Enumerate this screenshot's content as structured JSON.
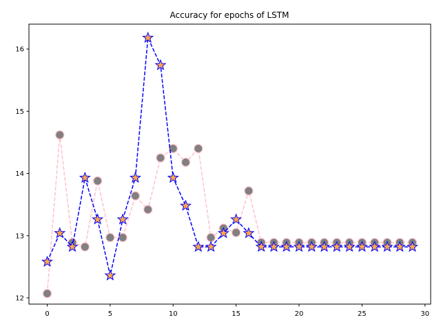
{
  "chart_data": {
    "type": "line",
    "title": "Accuracy for epochs of LSTM",
    "xlabel": "",
    "ylabel": "",
    "xlim": [
      -1.45,
      30.45
    ],
    "ylim": [
      11.9,
      16.4
    ],
    "xticks": [
      0,
      5,
      10,
      15,
      20,
      25,
      30
    ],
    "yticks": [
      12,
      13,
      14,
      15,
      16
    ],
    "grid": false,
    "x": [
      0,
      1,
      2,
      3,
      4,
      5,
      6,
      7,
      8,
      9,
      10,
      11,
      12,
      13,
      14,
      15,
      16,
      17,
      18,
      19,
      20,
      21,
      22,
      23,
      24,
      25,
      26,
      27,
      28,
      29
    ],
    "series": [
      {
        "line_color": "#ffc0cb",
        "marker": "circle",
        "marker_fill": "#808080",
        "marker_edge": "#ffc0cb",
        "values": [
          12.07,
          14.62,
          12.89,
          12.82,
          13.88,
          12.97,
          12.97,
          13.64,
          13.42,
          14.25,
          14.4,
          14.18,
          14.4,
          12.97,
          13.12,
          13.05,
          13.72,
          12.89,
          12.89,
          12.89,
          12.89,
          12.89,
          12.89,
          12.89,
          12.89,
          12.89,
          12.89,
          12.89,
          12.89,
          12.89
        ]
      },
      {
        "line_color": "#0000ff",
        "marker": "star",
        "marker_fill": "#ffa54f",
        "marker_edge": "#0000ff",
        "values": [
          12.58,
          13.04,
          12.82,
          13.93,
          13.26,
          12.36,
          13.26,
          13.93,
          16.18,
          15.74,
          13.93,
          13.48,
          12.82,
          12.82,
          13.04,
          13.26,
          13.04,
          12.82,
          12.82,
          12.82,
          12.82,
          12.82,
          12.82,
          12.82,
          12.82,
          12.82,
          12.82,
          12.82,
          12.82,
          12.82
        ]
      }
    ]
  }
}
